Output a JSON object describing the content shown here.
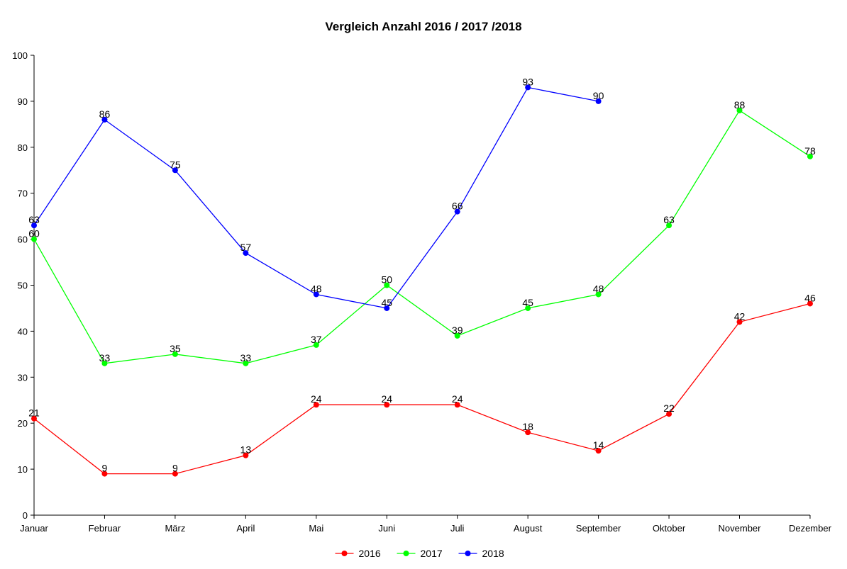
{
  "chart_data": {
    "type": "line",
    "title": "Vergleich Anzahl 2016 / 2017 /2018",
    "xlabel": "",
    "ylabel": "",
    "categories": [
      "Januar",
      "Februar",
      "März",
      "April",
      "Mai",
      "Juni",
      "Juli",
      "August",
      "September",
      "Oktober",
      "November",
      "Dezember"
    ],
    "ylim": [
      0,
      100
    ],
    "yticks": [
      0,
      10,
      20,
      30,
      40,
      50,
      60,
      70,
      80,
      90,
      100
    ],
    "grid": false,
    "legend_position": "bottom",
    "series": [
      {
        "name": "2016",
        "color": "#ff0000",
        "values": [
          21,
          9,
          9,
          13,
          24,
          24,
          24,
          18,
          14,
          22,
          42,
          46
        ]
      },
      {
        "name": "2017",
        "color": "#00ff00",
        "values": [
          60,
          33,
          35,
          33,
          37,
          50,
          39,
          45,
          48,
          63,
          88,
          78
        ]
      },
      {
        "name": "2018",
        "color": "#0000ff",
        "values": [
          63,
          86,
          75,
          57,
          48,
          45,
          66,
          93,
          90,
          null,
          null,
          null
        ]
      }
    ]
  }
}
